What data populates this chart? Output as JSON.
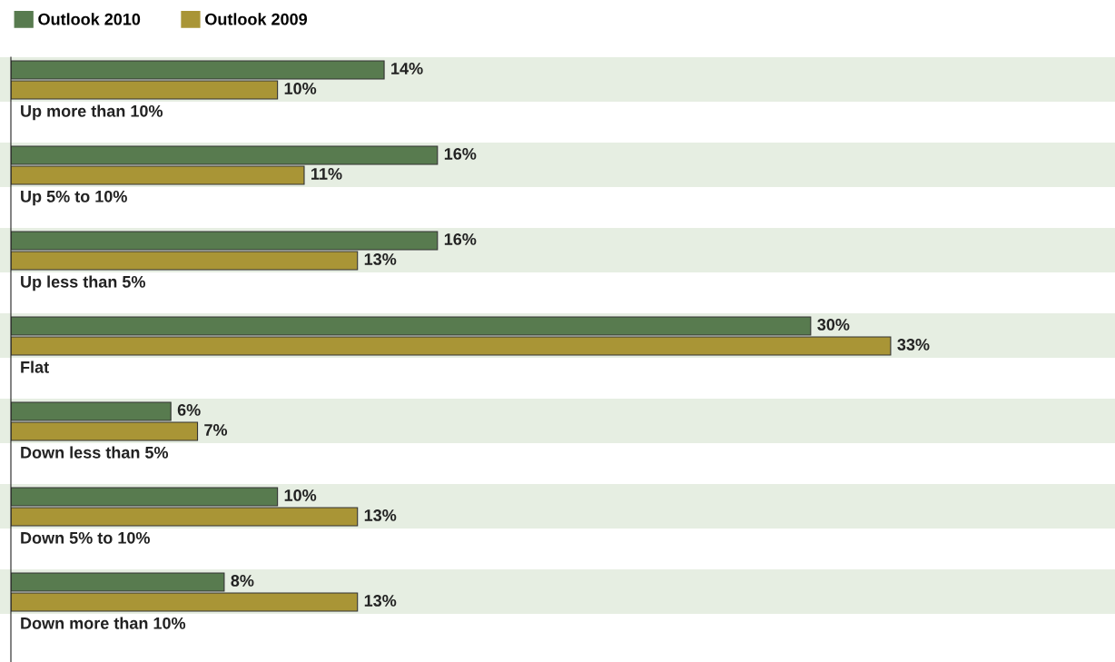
{
  "chart_data": {
    "type": "bar",
    "orientation": "horizontal",
    "categories": [
      "Up more than 10%",
      "Up 5% to 10%",
      "Up less than 5%",
      "Flat",
      "Down less than 5%",
      "Down 5% to 10%",
      "Down more than 10%"
    ],
    "series": [
      {
        "name": "Outlook 2010",
        "color": "#587b4f",
        "values": [
          14,
          16,
          16,
          30,
          6,
          10,
          8
        ],
        "value_labels": [
          "14%",
          "16%",
          "16%",
          "30%",
          "6%",
          "10%",
          "8%"
        ]
      },
      {
        "name": "Outlook 2009",
        "color": "#a99536",
        "values": [
          10,
          11,
          13,
          33,
          7,
          13,
          13
        ],
        "value_labels": [
          "10%",
          "11%",
          "13%",
          "33%",
          "7%",
          "13%",
          "13%"
        ]
      }
    ],
    "legend": "top left"
  }
}
